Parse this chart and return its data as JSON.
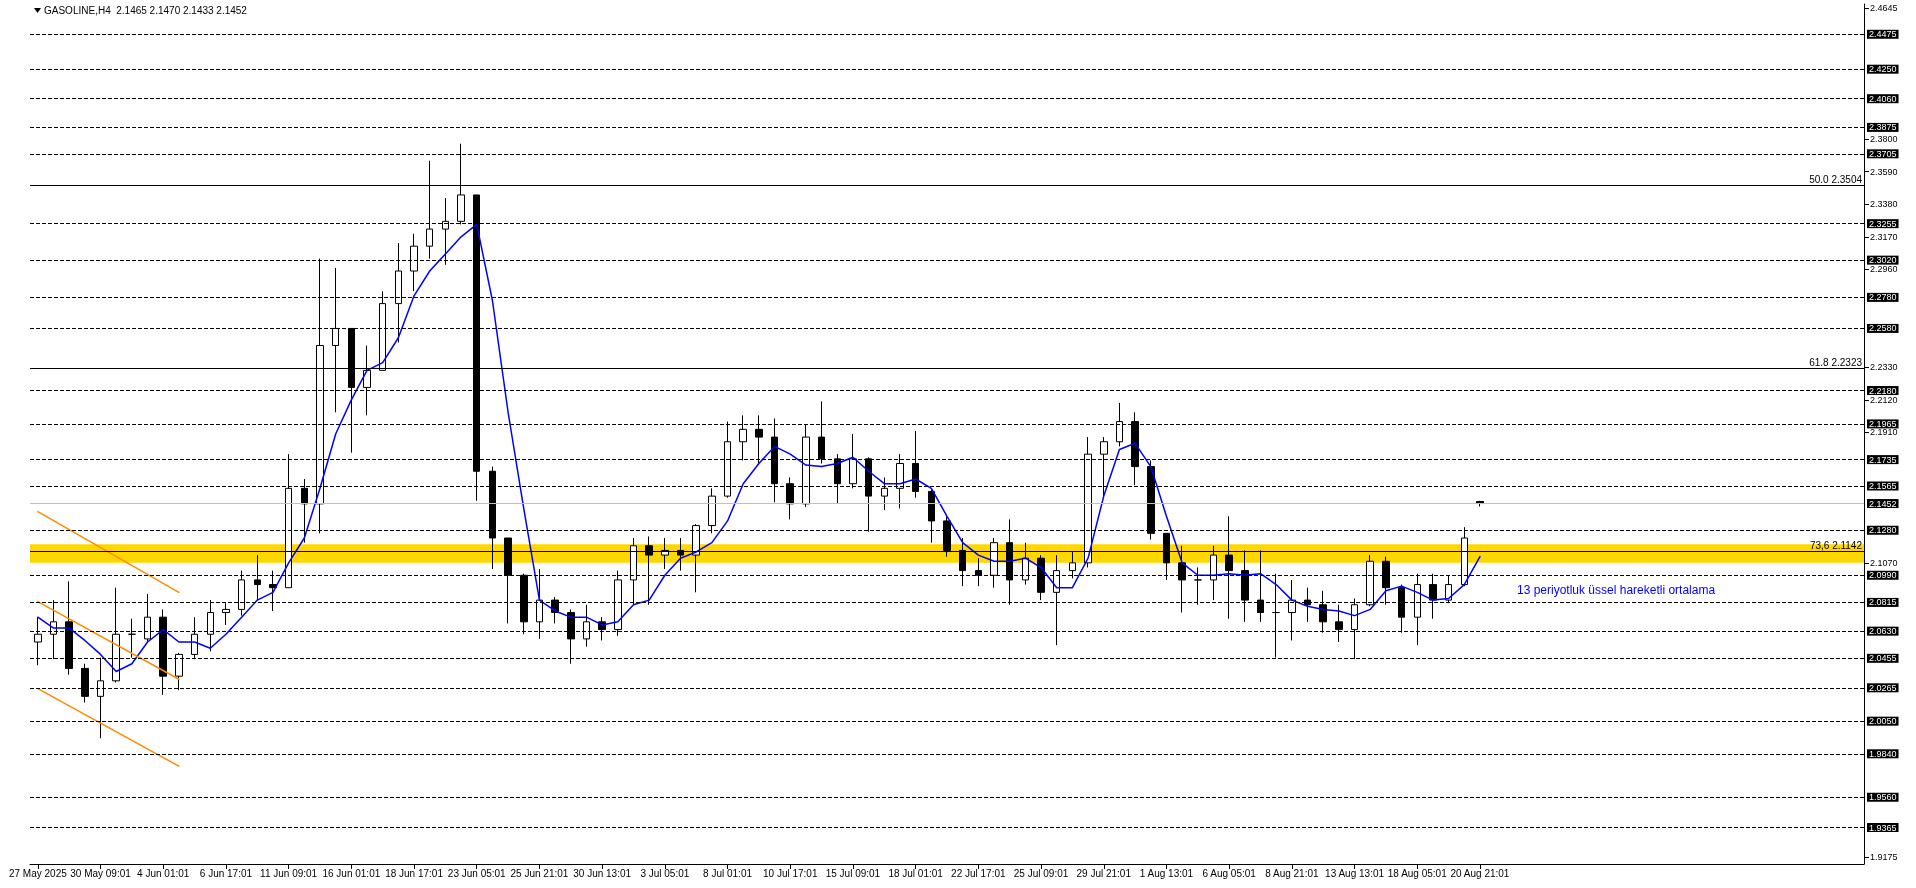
{
  "chart_data": {
    "type": "candlestick",
    "title": "GASOLINE,H4  2.1465 2.1470 2.1433 2.1452",
    "categories": [
      "27 May 2025",
      null,
      null,
      null,
      "30 May 09:01",
      null,
      null,
      null,
      "4 Jun 01:01",
      null,
      null,
      null,
      "6 Jun 17:01",
      null,
      null,
      null,
      "11 Jun 09:01",
      null,
      null,
      null,
      "16 Jun 01:01",
      null,
      null,
      null,
      "18 Jun 17:01",
      null,
      null,
      null,
      "23 Jun 05:01",
      null,
      null,
      null,
      "25 Jun 21:01",
      null,
      null,
      null,
      "30 Jun 13:01",
      null,
      null,
      null,
      "3 Jul 05:01",
      null,
      null,
      null,
      "8 Jul 01:01",
      null,
      null,
      null,
      "10 Jul 17:01",
      null,
      null,
      null,
      "15 Jul 09:01",
      null,
      null,
      null,
      "18 Jul 01:01",
      null,
      null,
      null,
      "22 Jul 17:01",
      null,
      null,
      null,
      "25 Jul 09:01",
      null,
      null,
      null,
      "29 Jul 21:01",
      null,
      null,
      null,
      "1 Aug 13:01",
      null,
      null,
      null,
      "6 Aug 05:01",
      null,
      null,
      null,
      "8 Aug 21:01",
      null,
      null,
      null,
      "13 Aug 13:01",
      null,
      null,
      null,
      "18 Aug 05:01",
      null,
      null,
      null,
      "20 Aug 21:01",
      null,
      null,
      null,
      null,
      null,
      null,
      null,
      null,
      null,
      null,
      null,
      null,
      null,
      null,
      null,
      null,
      null,
      null,
      null,
      null,
      null,
      null,
      null,
      null
    ],
    "ylim": [
      1.913,
      2.467
    ],
    "yticks": [
      {
        "value": 2.4645,
        "label": "2.4645"
      },
      {
        "value": 2.38,
        "label": "2.3800"
      },
      {
        "value": 2.359,
        "label": "2.3590"
      },
      {
        "value": 2.338,
        "label": "2.3380"
      },
      {
        "value": 2.317,
        "label": "2.3170"
      },
      {
        "value": 2.296,
        "label": "2.2960"
      },
      {
        "value": 2.233,
        "label": "2.2330"
      },
      {
        "value": 2.212,
        "label": "2.2120"
      },
      {
        "value": 2.191,
        "label": "2.1910"
      },
      {
        "value": 2.107,
        "label": "2.1070"
      },
      {
        "value": 1.9175,
        "label": "1.9175"
      }
    ],
    "grid": false,
    "marker": "none",
    "series": [
      {
        "color": "#000000",
        "ohlc": [
          [
            2.056,
            2.072,
            2.041,
            2.061
          ],
          [
            2.061,
            2.083,
            2.045,
            2.069
          ],
          [
            2.069,
            2.095,
            2.035,
            2.039
          ],
          [
            2.039,
            2.042,
            2.017,
            2.021
          ],
          [
            2.021,
            2.046,
            1.994,
            2.031
          ],
          [
            2.031,
            2.091,
            2.03,
            2.061
          ],
          [
            2.061,
            2.071,
            2.046,
            2.061
          ],
          [
            2.058,
            2.087,
            2.056,
            2.072
          ],
          [
            2.072,
            2.077,
            2.022,
            2.034
          ],
          [
            2.034,
            2.049,
            2.025,
            2.048
          ],
          [
            2.048,
            2.072,
            2.045,
            2.061
          ],
          [
            2.061,
            2.083,
            2.05,
            2.075
          ],
          [
            2.075,
            2.081,
            2.067,
            2.077
          ],
          [
            2.077,
            2.102,
            2.073,
            2.096
          ],
          [
            2.096,
            2.112,
            2.083,
            2.093
          ],
          [
            2.093,
            2.102,
            2.076,
            2.091
          ],
          [
            2.091,
            2.177,
            2.091,
            2.155
          ],
          [
            2.155,
            2.161,
            2.12,
            2.145
          ],
          [
            2.145,
            2.303,
            2.126,
            2.247
          ],
          [
            2.247,
            2.297,
            2.204,
            2.258
          ],
          [
            2.258,
            2.258,
            2.178,
            2.22
          ],
          [
            2.22,
            2.247,
            2.202,
            2.231
          ],
          [
            2.231,
            2.282,
            2.231,
            2.274
          ],
          [
            2.274,
            2.313,
            2.249,
            2.295
          ],
          [
            2.295,
            2.319,
            2.282,
            2.311
          ],
          [
            2.311,
            2.366,
            2.303,
            2.322
          ],
          [
            2.322,
            2.342,
            2.299,
            2.327
          ],
          [
            2.327,
            2.377,
            2.325,
            2.344
          ],
          [
            2.344,
            2.344,
            2.147,
            2.166
          ],
          [
            2.166,
            2.169,
            2.103,
            2.123
          ],
          [
            2.123,
            2.123,
            2.068,
            2.099
          ],
          [
            2.099,
            2.1,
            2.061,
            2.069
          ],
          [
            2.069,
            2.103,
            2.058,
            2.083
          ],
          [
            2.083,
            2.085,
            2.068,
            2.075
          ],
          [
            2.075,
            2.077,
            2.042,
            2.058
          ],
          [
            2.058,
            2.08,
            2.053,
            2.069
          ],
          [
            2.069,
            2.072,
            2.057,
            2.064
          ],
          [
            2.064,
            2.102,
            2.06,
            2.096
          ],
          [
            2.096,
            2.123,
            2.08,
            2.118
          ],
          [
            2.118,
            2.124,
            2.08,
            2.112
          ],
          [
            2.112,
            2.123,
            2.103,
            2.115
          ],
          [
            2.115,
            2.123,
            2.102,
            2.112
          ],
          [
            2.112,
            2.132,
            2.088,
            2.131
          ],
          [
            2.131,
            2.155,
            2.126,
            2.15
          ],
          [
            2.15,
            2.198,
            2.149,
            2.185
          ],
          [
            2.185,
            2.202,
            2.173,
            2.193
          ],
          [
            2.193,
            2.202,
            2.171,
            2.188
          ],
          [
            2.188,
            2.2,
            2.146,
            2.158
          ],
          [
            2.158,
            2.162,
            2.135,
            2.145
          ],
          [
            2.145,
            2.196,
            2.143,
            2.188
          ],
          [
            2.188,
            2.211,
            2.171,
            2.174
          ],
          [
            2.174,
            2.177,
            2.145,
            2.158
          ],
          [
            2.158,
            2.19,
            2.155,
            2.174
          ],
          [
            2.174,
            2.175,
            2.127,
            2.15
          ],
          [
            2.15,
            2.162,
            2.141,
            2.155
          ],
          [
            2.155,
            2.177,
            2.142,
            2.171
          ],
          [
            2.171,
            2.192,
            2.149,
            2.153
          ],
          [
            2.153,
            2.154,
            2.12,
            2.134
          ],
          [
            2.134,
            2.137,
            2.111,
            2.115
          ],
          [
            2.115,
            2.123,
            2.092,
            2.102
          ],
          [
            2.102,
            2.11,
            2.092,
            2.099
          ],
          [
            2.099,
            2.123,
            2.091,
            2.12
          ],
          [
            2.12,
            2.135,
            2.08,
            2.096
          ],
          [
            2.096,
            2.12,
            2.093,
            2.11
          ],
          [
            2.11,
            2.112,
            2.083,
            2.088
          ],
          [
            2.088,
            2.112,
            2.054,
            2.102
          ],
          [
            2.102,
            2.114,
            2.097,
            2.107
          ],
          [
            2.107,
            2.188,
            2.104,
            2.177
          ],
          [
            2.177,
            2.188,
            2.15,
            2.185
          ],
          [
            2.185,
            2.21,
            2.182,
            2.198
          ],
          [
            2.198,
            2.204,
            2.157,
            2.169
          ],
          [
            2.169,
            2.173,
            2.122,
            2.126
          ],
          [
            2.126,
            2.126,
            2.096,
            2.107
          ],
          [
            2.107,
            2.118,
            2.075,
            2.096
          ],
          [
            2.096,
            2.104,
            2.08,
            2.096
          ],
          [
            2.096,
            2.118,
            2.083,
            2.112
          ],
          [
            2.112,
            2.137,
            2.071,
            2.102
          ],
          [
            2.102,
            2.115,
            2.069,
            2.083
          ],
          [
            2.083,
            2.115,
            2.069,
            2.075
          ],
          [
            2.075,
            2.1,
            2.046,
            2.075
          ],
          [
            2.075,
            2.096,
            2.057,
            2.083
          ],
          [
            2.083,
            2.091,
            2.069,
            2.08
          ],
          [
            2.08,
            2.089,
            2.062,
            2.069
          ],
          [
            2.069,
            2.08,
            2.056,
            2.064
          ],
          [
            2.064,
            2.084,
            2.045,
            2.08
          ],
          [
            2.08,
            2.112,
            2.079,
            2.108
          ],
          [
            2.108,
            2.111,
            2.08,
            2.091
          ],
          [
            2.091,
            2.093,
            2.062,
            2.072
          ],
          [
            2.072,
            2.1,
            2.054,
            2.093
          ],
          [
            2.093,
            2.1,
            2.071,
            2.083
          ],
          [
            2.083,
            2.099,
            2.081,
            2.093
          ],
          [
            2.093,
            2.13,
            2.092,
            2.123
          ],
          [
            2.1465,
            2.147,
            2.1433,
            2.1452
          ],
          null,
          null,
          null,
          null,
          null,
          null,
          null,
          null,
          null,
          null,
          null,
          null,
          null,
          null,
          null,
          null,
          null,
          null,
          null,
          null,
          null,
          null,
          null,
          null
        ]
      },
      {
        "type": "line",
        "color": "#0000ff",
        "values": [
          2.072,
          2.065,
          2.065,
          2.057,
          2.048,
          2.037,
          2.042,
          2.056,
          2.064,
          2.056,
          2.056,
          2.052,
          2.061,
          2.072,
          2.083,
          2.088,
          2.107,
          2.123,
          2.155,
          2.19,
          2.212,
          2.231,
          2.236,
          2.252,
          2.279,
          2.295,
          2.306,
          2.317,
          2.325,
          2.276,
          2.204,
          2.142,
          2.083,
          2.076,
          2.072,
          2.072,
          2.067,
          2.069,
          2.08,
          2.083,
          2.099,
          2.11,
          2.114,
          2.12,
          2.134,
          2.158,
          2.171,
          2.182,
          2.177,
          2.17,
          2.169,
          2.171,
          2.175,
          2.166,
          2.158,
          2.158,
          2.161,
          2.155,
          2.137,
          2.12,
          2.112,
          2.108,
          2.108,
          2.11,
          2.104,
          2.091,
          2.091,
          2.11,
          2.15,
          2.18,
          2.184,
          2.169,
          2.137,
          2.107,
          2.099,
          2.099,
          2.1,
          2.099,
          2.1,
          2.093,
          2.083,
          2.079,
          2.077,
          2.076,
          2.073,
          2.077,
          2.089,
          2.092,
          2.088,
          2.083,
          2.084,
          2.093,
          2.111,
          null,
          null,
          null,
          null,
          null,
          null,
          null,
          null,
          null,
          null,
          null,
          null,
          null,
          null,
          null,
          null,
          null,
          null,
          null,
          null,
          null,
          null,
          null,
          null
        ]
      },
      {
        "type": "line",
        "color": "#ff8c00",
        "values": [
          2.14,
          null,
          null,
          null,
          null,
          null,
          null,
          null,
          null,
          2.088,
          null,
          null,
          null,
          null,
          null,
          null,
          null,
          null,
          null,
          null,
          null,
          null,
          null,
          null,
          null,
          null,
          null,
          null,
          null,
          null,
          null,
          null,
          null,
          null,
          null,
          null,
          null,
          null,
          null,
          null,
          null,
          null,
          null,
          null,
          null,
          null,
          null,
          null,
          null,
          null,
          null,
          null,
          null,
          null,
          null,
          null,
          null,
          null,
          null,
          null,
          null,
          null,
          null,
          null,
          null,
          null,
          null,
          null,
          null,
          null,
          null,
          null,
          null,
          null,
          null,
          null,
          null,
          null,
          null,
          null,
          null,
          null,
          null,
          null,
          null,
          null,
          null,
          null,
          null,
          null,
          null,
          null,
          null,
          null,
          null,
          null,
          null,
          null,
          null,
          null,
          null,
          null,
          null,
          null,
          null,
          null,
          null,
          null,
          null,
          null,
          null,
          null,
          null,
          null,
          null,
          null,
          null
        ]
      },
      {
        "type": "line",
        "color": "#ff8c00",
        "values": [
          2.082,
          null,
          null,
          null,
          null,
          null,
          null,
          null,
          null,
          2.032,
          null,
          null,
          null,
          null,
          null,
          null,
          null,
          null,
          null,
          null,
          null,
          null,
          null,
          null,
          null,
          null,
          null,
          null,
          null,
          null,
          null,
          null,
          null,
          null,
          null,
          null,
          null,
          null,
          null,
          null,
          null,
          null,
          null,
          null,
          null,
          null,
          null,
          null,
          null,
          null,
          null,
          null,
          null,
          null,
          null,
          null,
          null,
          null,
          null,
          null,
          null,
          null,
          null,
          null,
          null,
          null,
          null,
          null,
          null,
          null,
          null,
          null,
          null,
          null,
          null,
          null,
          null,
          null,
          null,
          null,
          null,
          null,
          null,
          null,
          null,
          null,
          null,
          null,
          null,
          null,
          null,
          null,
          null,
          null,
          null,
          null,
          null,
          null,
          null,
          null,
          null,
          null,
          null,
          null,
          null,
          null,
          null,
          null,
          null,
          null,
          null,
          null,
          null,
          null,
          null,
          null,
          null
        ]
      },
      {
        "type": "line",
        "color": "#ff8c00",
        "values": [
          2.026,
          null,
          null,
          null,
          null,
          null,
          null,
          null,
          null,
          1.976,
          null,
          null,
          null,
          null,
          null,
          null,
          null,
          null,
          null,
          null,
          null,
          null,
          null,
          null,
          null,
          null,
          null,
          null,
          null,
          null,
          null,
          null,
          null,
          null,
          null,
          null,
          null,
          null,
          null,
          null,
          null,
          null,
          null,
          null,
          null,
          null,
          null,
          null,
          null,
          null,
          null,
          null,
          null,
          null,
          null,
          null,
          null,
          null,
          null,
          null,
          null,
          null,
          null,
          null,
          null,
          null,
          null,
          null,
          null,
          null,
          null,
          null,
          null,
          null,
          null,
          null,
          null,
          null,
          null,
          null,
          null,
          null,
          null,
          null,
          null,
          null,
          null,
          null,
          null,
          null,
          null,
          null,
          null,
          null,
          null,
          null,
          null,
          null,
          null,
          null,
          null,
          null,
          null,
          null,
          null,
          null,
          null,
          null,
          null,
          null,
          null,
          null,
          null,
          null,
          null,
          null,
          null
        ]
      }
    ],
    "ref_lines": [
      {
        "axis": "y",
        "value": 2.4475,
        "label": "2.4475",
        "color": "#000000",
        "line_style": "dashed"
      },
      {
        "axis": "y",
        "value": 2.425,
        "label": "2.4250",
        "color": "#000000",
        "line_style": "dashed"
      },
      {
        "axis": "y",
        "value": 2.406,
        "label": "2.4060",
        "color": "#000000",
        "line_style": "dashed"
      },
      {
        "axis": "y",
        "value": 2.3875,
        "label": "2.3875",
        "color": "#000000",
        "line_style": "dashed"
      },
      {
        "axis": "y",
        "value": 2.3705,
        "label": "2.3705",
        "color": "#000000",
        "line_style": "dashed"
      },
      {
        "axis": "y",
        "value": 2.3255,
        "label": "2.3255",
        "color": "#000000",
        "line_style": "dashed"
      },
      {
        "axis": "y",
        "value": 2.302,
        "label": "2.3020",
        "color": "#000000",
        "line_style": "dashed"
      },
      {
        "axis": "y",
        "value": 2.278,
        "label": "2.2780",
        "color": "#000000",
        "line_style": "dashed"
      },
      {
        "axis": "y",
        "value": 2.258,
        "label": "2.2580",
        "color": "#000000",
        "line_style": "dashed"
      },
      {
        "axis": "y",
        "value": 2.218,
        "label": "2.2180",
        "color": "#000000",
        "line_style": "dashed"
      },
      {
        "axis": "y",
        "value": 2.1965,
        "label": "2.1965",
        "color": "#000000",
        "line_style": "dashed"
      },
      {
        "axis": "y",
        "value": 2.1735,
        "label": "2.1735",
        "color": "#000000",
        "line_style": "dashed"
      },
      {
        "axis": "y",
        "value": 2.1565,
        "label": "2.1565",
        "color": "#000000",
        "line_style": "dashed"
      },
      {
        "axis": "y",
        "value": 2.1452,
        "label": "2.1452",
        "color": "#c0c0c0",
        "line_style": "solid"
      },
      {
        "axis": "y",
        "value": 2.128,
        "label": "2.1280",
        "color": "#000000",
        "line_style": "dashed"
      },
      {
        "axis": "y",
        "value": 2.099,
        "label": "2.0990",
        "color": "#000000",
        "line_style": "dashed"
      },
      {
        "axis": "y",
        "value": 2.0815,
        "label": "2.0815",
        "color": "#000000",
        "line_style": "dashed"
      },
      {
        "axis": "y",
        "value": 2.063,
        "label": "2.0630",
        "color": "#000000",
        "line_style": "dashed"
      },
      {
        "axis": "y",
        "value": 2.0455,
        "label": "2.0455",
        "color": "#000000",
        "line_style": "dashed"
      },
      {
        "axis": "y",
        "value": 2.0265,
        "label": "2.0265",
        "color": "#000000",
        "line_style": "dashed"
      },
      {
        "axis": "y",
        "value": 2.005,
        "label": "2.0050",
        "color": "#000000",
        "line_style": "dashed"
      },
      {
        "axis": "y",
        "value": 1.984,
        "label": "1.9840",
        "color": "#000000",
        "line_style": "dashed"
      },
      {
        "axis": "y",
        "value": 1.956,
        "label": "1.9560",
        "color": "#000000",
        "line_style": "dashed"
      },
      {
        "axis": "y",
        "value": 1.9365,
        "label": "1.9365",
        "color": "#000000",
        "line_style": "dashed"
      },
      {
        "axis": "y",
        "value": 2.3504,
        "color": "#000000",
        "line_style": "solid"
      },
      {
        "axis": "y",
        "value": 2.2323,
        "color": "#000000",
        "line_style": "solid"
      },
      {
        "axis": "y",
        "value": 2.1142,
        "color": "#000000",
        "line_style": "solid"
      }
    ],
    "bands": [
      {
        "axis": "y",
        "from": 2.107,
        "to": 2.119,
        "color": "#ffd700"
      }
    ],
    "annotations": [
      {
        "text": "50.0 2.3504",
        "y": 2.3504
      },
      {
        "text": "61.8 2.2323",
        "y": 2.2323
      },
      {
        "text": "73,6 2.1142",
        "y": 2.1142
      },
      "13 periyotluk üssel hareketli ortalama"
    ]
  }
}
